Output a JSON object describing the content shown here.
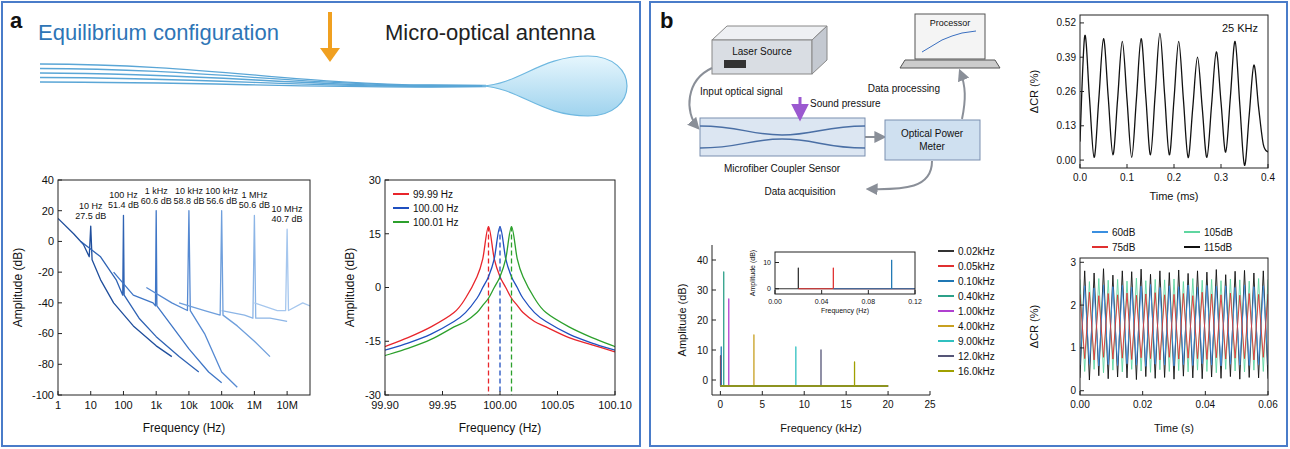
{
  "panel_letters": [
    "a",
    "b"
  ],
  "diagram_a": {
    "left_label": "Equilibrium configuration",
    "right_label": "Micro-optical antenna"
  },
  "diagram_b": {
    "laser": "Laser Source",
    "processor": "Processor",
    "input": "Input optical signal",
    "sound": "Sound pressure",
    "sensor": "Microfiber Coupler Sensor",
    "meter": [
      "Optical Power",
      "Meter"
    ],
    "processing": "Data processing",
    "acquisition": "Data acquisition"
  },
  "chart_data": [
    {
      "type": "line",
      "log": "x",
      "xlabel": "Frequency (Hz)",
      "ylabel": "Amplitude (dB)",
      "xlim": [
        1,
        50000000
      ],
      "ylim": [
        -100,
        40
      ],
      "xticks": [
        1,
        10,
        100,
        {
          "value": 1000,
          "label": "1k"
        },
        {
          "value": 10000,
          "label": "10k"
        },
        {
          "value": 100000,
          "label": "100k"
        },
        {
          "value": 1000000,
          "label": "1M"
        },
        {
          "value": 10000000,
          "label": "10M"
        }
      ],
      "yticks": [
        -100,
        -80,
        -60,
        -40,
        -20,
        0,
        20,
        40
      ],
      "series": [
        {
          "color": "#1f4e9c",
          "x": [
            1,
            3,
            6,
            9,
            10,
            11,
            20,
            50,
            200,
            1000,
            3000
          ],
          "values": [
            15,
            5,
            -2,
            -10,
            10,
            -12,
            -25,
            -40,
            -55,
            -68,
            -75
          ]
        },
        {
          "color": "#2f63b4",
          "x": [
            5,
            20,
            60,
            95,
            100,
            105,
            300,
            1000,
            5000,
            20000
          ],
          "values": [
            0,
            -10,
            -25,
            -35,
            17,
            -35,
            -50,
            -62,
            -75,
            -85
          ]
        },
        {
          "color": "#3f76c6",
          "x": [
            50,
            200,
            800,
            950,
            1000,
            1050,
            3000,
            10000,
            40000,
            100000
          ],
          "values": [
            -20,
            -35,
            -40,
            -42,
            20,
            -42,
            -55,
            -70,
            -85,
            -92
          ]
        },
        {
          "color": "#5589d2",
          "x": [
            500,
            3000,
            9000,
            10000,
            11000,
            30000,
            100000,
            300000
          ],
          "values": [
            -30,
            -40,
            -45,
            20,
            -45,
            -60,
            -85,
            -95
          ]
        },
        {
          "color": "#6f9fdc",
          "x": [
            5000,
            30000,
            90000,
            100000,
            110000,
            300000,
            1000000,
            3000000
          ],
          "values": [
            -40,
            -45,
            -48,
            20,
            -48,
            -55,
            -65,
            -75
          ]
        },
        {
          "color": "#8cb5e6",
          "x": [
            100000,
            500000,
            900000,
            1000000,
            1100000,
            3000000,
            10000000
          ],
          "values": [
            -45,
            -48,
            -50,
            17,
            -50,
            -50,
            -52
          ]
        },
        {
          "color": "#a6c7ee",
          "x": [
            1000000,
            5000000,
            9000000,
            10000000,
            11000000,
            30000000,
            50000000
          ],
          "values": [
            -40,
            -45,
            -45,
            8,
            -45,
            -40,
            -42
          ]
        }
      ],
      "annotations": [
        {
          "x": 10,
          "y": 10,
          "lines": [
            "10 Hz",
            "27.5 dB"
          ]
        },
        {
          "x": 100,
          "y": 17,
          "lines": [
            "100 Hz",
            "51.4 dB"
          ]
        },
        {
          "x": 1000,
          "y": 20,
          "lines": [
            "1 kHz",
            "60.6 dB"
          ]
        },
        {
          "x": 10000,
          "y": 20,
          "lines": [
            "10 kHz",
            "58.8 dB"
          ]
        },
        {
          "x": 100000,
          "y": 20,
          "lines": [
            "100 kHz",
            "56.6 dB"
          ]
        },
        {
          "x": 1000000,
          "y": 17,
          "lines": [
            "1 MHz",
            "50.6 dB"
          ]
        },
        {
          "x": 10000000,
          "y": 8,
          "lines": [
            "10 MHz",
            "40.7 dB"
          ]
        }
      ]
    },
    {
      "type": "line",
      "xlabel": "Frequency (Hz)",
      "ylabel": "Amplitude (dB)",
      "xlim": [
        99.9,
        100.1
      ],
      "ylim": [
        -30,
        30
      ],
      "xticks": [
        {
          "value": 99.9,
          "label": "99.90"
        },
        99.95,
        {
          "value": 100,
          "label": "100.00"
        },
        100.05,
        {
          "value": 100.1,
          "label": "100.10"
        }
      ],
      "yticks": [
        -30,
        -15,
        0,
        15,
        30
      ],
      "legend": "upper left",
      "x": [
        99.9,
        99.92,
        99.94,
        99.96,
        99.97,
        99.98,
        99.985,
        99.99,
        99.995,
        100,
        100.005,
        100.01,
        100.015,
        100.02,
        100.03,
        100.04,
        100.06,
        100.08,
        100.1
      ],
      "series": [
        {
          "name": "99.99 Hz",
          "color": "#e8252b",
          "line_style": "smooth",
          "marker": "dropline",
          "values": [
            -16.5,
            -14,
            -11,
            -7,
            -3,
            3,
            8,
            17,
            8,
            3,
            0,
            -3,
            -5,
            -7,
            -9.5,
            -11,
            -14,
            -16,
            -18
          ]
        },
        {
          "name": "100.00 Hz",
          "color": "#1f4fbf",
          "line_style": "smooth",
          "marker": "dropline",
          "values": [
            -17.5,
            -15.5,
            -13,
            -9.5,
            -7,
            -3,
            0,
            3,
            8,
            17,
            8,
            3,
            0,
            -3,
            -7,
            -9.5,
            -13,
            -15.5,
            -17.5
          ]
        },
        {
          "name": "100.01 Hz",
          "color": "#2ca02c",
          "line_style": "smooth",
          "marker": "dropline",
          "values": [
            -19,
            -17,
            -14.5,
            -11,
            -9.5,
            -7,
            -5,
            -3,
            0,
            3,
            8,
            17,
            8,
            3,
            -3,
            -7,
            -11,
            -14,
            -16.5
          ]
        }
      ]
    },
    {
      "type": "line",
      "title": "25 KHz",
      "xlabel": "Time (ms)",
      "ylabel": "ΔCR (%)",
      "xlim": [
        0,
        0.4
      ],
      "ylim": [
        -0.03,
        0.55
      ],
      "xticks": [
        {
          "value": 0,
          "label": "0.0"
        },
        0.1,
        0.2,
        0.3,
        0.4
      ],
      "yticks": [
        {
          "value": 0,
          "label": "0.00"
        },
        0.13,
        0.26,
        0.39,
        0.52
      ],
      "x": [
        0,
        0.01,
        0.02,
        0.03,
        0.04,
        0.05,
        0.06,
        0.07,
        0.08,
        0.09,
        0.1,
        0.11,
        0.12,
        0.13,
        0.14,
        0.15,
        0.16,
        0.17,
        0.18,
        0.19,
        0.2,
        0.21,
        0.22,
        0.23,
        0.24,
        0.25,
        0.26,
        0.27,
        0.28,
        0.29,
        0.3,
        0.31,
        0.32,
        0.33,
        0.34,
        0.35,
        0.36,
        0.37,
        0.38,
        0.39,
        0.4
      ],
      "series": [
        {
          "color": "#111111",
          "line_style": "smooth",
          "values": [
            0.07,
            0.47,
            0.24,
            0.01,
            0.23,
            0.46,
            0.24,
            0.02,
            0.23,
            0.45,
            0.23,
            0.01,
            0.23,
            0.46,
            0.24,
            0.02,
            0.25,
            0.48,
            0.25,
            0.02,
            0.23,
            0.45,
            0.23,
            0.01,
            0.2,
            0.39,
            0.2,
            0.01,
            0.21,
            0.41,
            0.22,
            0.03,
            0.24,
            0.45,
            0.21,
            -0.02,
            0.17,
            0.36,
            0.2,
            0.06,
            0.03
          ]
        }
      ]
    },
    {
      "type": "line",
      "xlabel": "Frequency (kHz)",
      "ylabel": "Amplitude (dB)",
      "xlim": [
        -1,
        25
      ],
      "ylim": [
        -5,
        45
      ],
      "xticks": [
        0,
        5,
        10,
        15,
        20,
        25
      ],
      "yticks": [
        0,
        10,
        20,
        30,
        40
      ],
      "legend": "right",
      "series": [
        {
          "name": "0.02kHz",
          "color": "#333333",
          "x": [
            0,
            0.02,
            0.02,
            0.02,
            20
          ],
          "values": [
            -2,
            -2,
            8,
            -2,
            -2
          ]
        },
        {
          "name": "0.05kHz",
          "color": "#e03030",
          "x": [
            0,
            0.05,
            0.05,
            0.05,
            20
          ],
          "values": [
            -2,
            -2,
            8,
            -2,
            -2
          ]
        },
        {
          "name": "0.10kHz",
          "color": "#1f77b4",
          "x": [
            0,
            0.1,
            0.1,
            0.1,
            20
          ],
          "values": [
            -2,
            -2,
            11,
            -2,
            -2
          ]
        },
        {
          "name": "0.40kHz",
          "color": "#2ca089",
          "x": [
            0,
            0.4,
            0.4,
            0.4,
            20
          ],
          "values": [
            -2,
            -2,
            36,
            -2,
            -2
          ]
        },
        {
          "name": "1.00kHz",
          "color": "#b040d0",
          "x": [
            0,
            1,
            1,
            1,
            20
          ],
          "values": [
            -2,
            -2,
            27,
            -2,
            -2
          ]
        },
        {
          "name": "4.00kHz",
          "color": "#c8a020",
          "x": [
            0,
            4,
            4,
            4,
            20
          ],
          "values": [
            -2,
            -2,
            15,
            -2,
            -2
          ]
        },
        {
          "name": "9.00kHz",
          "color": "#30c0c0",
          "x": [
            0,
            9,
            9,
            9,
            20
          ],
          "values": [
            -2,
            -2,
            11,
            -2,
            -2
          ]
        },
        {
          "name": "12.0kHz",
          "color": "#555577",
          "x": [
            0,
            12,
            12,
            12,
            20
          ],
          "values": [
            -2,
            -2,
            10,
            -2,
            -2
          ]
        },
        {
          "name": "16.0kHz",
          "color": "#a0a000",
          "x": [
            0,
            16,
            16,
            16,
            20
          ],
          "values": [
            -2,
            -2,
            6,
            -2,
            -2
          ]
        }
      ]
    },
    {
      "type": "line",
      "xlabel": "Frequency (Hz)",
      "ylabel": "Amplitude (dB)",
      "xlim": [
        0,
        0.12
      ],
      "ylim": [
        -2,
        14
      ],
      "xticks": [
        {
          "value": 0,
          "label": "0.00"
        },
        0.04,
        0.08,
        0.12
      ],
      "yticks": [
        0,
        10
      ],
      "series": [
        {
          "color": "#333333",
          "x": [
            0,
            0.02,
            0.02,
            0.02,
            0.12
          ],
          "values": [
            0,
            0,
            8,
            0,
            0
          ]
        },
        {
          "color": "#e03030",
          "x": [
            0.02,
            0.05,
            0.05,
            0.05,
            0.12
          ],
          "values": [
            0,
            0,
            8,
            0,
            0
          ]
        },
        {
          "color": "#1f77b4",
          "x": [
            0.05,
            0.1,
            0.1,
            0.1,
            0.12
          ],
          "values": [
            0,
            0,
            11,
            0,
            0
          ]
        }
      ]
    },
    {
      "type": "line",
      "xlabel": "Time (s)",
      "ylabel": "ΔCR (%)",
      "xlim": [
        0,
        0.06
      ],
      "ylim": [
        -0.1,
        3.1
      ],
      "xticks": [
        {
          "value": 0,
          "label": "0.00"
        },
        0.02,
        0.04,
        0.06
      ],
      "yticks": [
        0,
        1,
        2,
        3
      ],
      "legend": "top",
      "x": [
        0,
        0.0015,
        0.003,
        0.0045,
        0.006,
        0.0075,
        0.009,
        0.0105,
        0.012,
        0.0135,
        0.015,
        0.0165,
        0.018,
        0.0195,
        0.021,
        0.0225,
        0.024,
        0.0255,
        0.027,
        0.0285,
        0.03,
        0.0315,
        0.033,
        0.0345,
        0.036,
        0.0375,
        0.039,
        0.0405,
        0.042,
        0.0435,
        0.045,
        0.0465,
        0.048,
        0.0495,
        0.051,
        0.0525,
        0.054,
        0.0555,
        0.057,
        0.0585,
        0.06
      ],
      "series": [
        {
          "name": "60dB",
          "color": "#3a8fe0",
          "values": [
            0.6,
            2.45,
            0.62,
            2.4,
            0.58,
            2.47,
            0.61,
            2.43,
            0.59,
            2.46,
            0.63,
            2.42,
            0.6,
            2.44,
            0.57,
            2.48,
            0.62,
            2.41,
            0.6,
            2.45,
            0.58,
            2.43,
            0.61,
            2.47,
            0.59,
            2.42,
            0.63,
            2.46,
            0.6,
            2.44,
            0.58,
            2.45,
            0.62,
            2.41,
            0.6,
            2.47,
            0.59,
            2.43,
            0.61,
            2.45,
            0.6
          ]
        },
        {
          "name": "75dB",
          "color": "#e03030",
          "values": [
            2.25,
            0.75,
            2.3,
            0.72,
            2.22,
            0.78,
            2.27,
            0.74,
            2.24,
            0.76,
            2.28,
            0.73,
            2.23,
            0.77,
            2.26,
            0.75,
            2.29,
            0.72,
            2.24,
            0.78,
            2.25,
            0.74,
            2.27,
            0.76,
            2.22,
            0.75,
            2.3,
            0.73,
            2.26,
            0.77,
            2.24,
            0.74,
            2.28,
            0.76,
            2.23,
            0.75,
            2.27,
            0.72,
            2.25,
            0.78,
            2.26
          ]
        },
        {
          "name": "105dB",
          "color": "#5fd6a0",
          "values": [
            2.6,
            0.45,
            2.55,
            0.5,
            2.62,
            0.42,
            2.58,
            0.48,
            2.6,
            0.44,
            2.56,
            0.5,
            2.63,
            0.46,
            2.57,
            0.43,
            2.6,
            0.49,
            2.59,
            0.45,
            2.61,
            0.47,
            2.55,
            0.44,
            2.62,
            0.48,
            2.58,
            0.45,
            2.6,
            0.42,
            2.57,
            0.5,
            2.61,
            0.46,
            2.59,
            0.44,
            2.56,
            0.48,
            2.62,
            0.45,
            2.6
          ]
        },
        {
          "name": "115dB",
          "color": "#111111",
          "values": [
            0.3,
            2.8,
            0.25,
            2.75,
            0.35,
            2.85,
            0.28,
            2.7,
            0.32,
            2.8,
            0.3,
            2.78,
            0.26,
            2.84,
            0.33,
            2.72,
            0.29,
            2.8,
            0.31,
            2.76,
            0.27,
            2.82,
            0.34,
            2.74,
            0.3,
            2.8,
            0.28,
            2.77,
            0.32,
            2.83,
            0.29,
            2.71,
            0.33,
            2.79,
            0.27,
            2.81,
            0.31,
            2.75,
            0.3,
            2.8,
            0.28
          ]
        }
      ]
    }
  ]
}
